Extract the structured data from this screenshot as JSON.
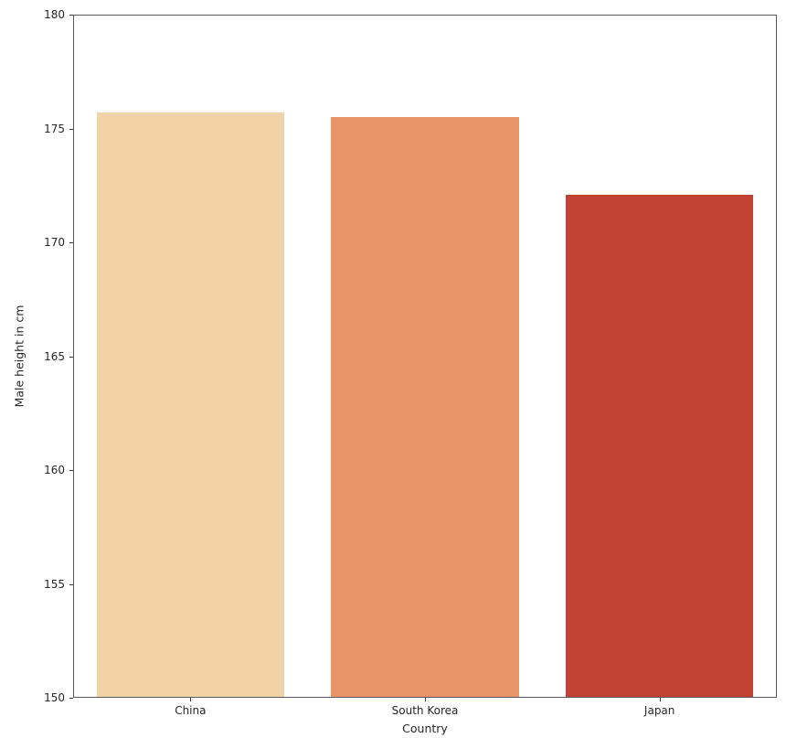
{
  "chart_data": {
    "type": "bar",
    "categories": [
      "China",
      "South Korea",
      "Japan"
    ],
    "values": [
      175.7,
      175.5,
      172.1
    ],
    "title": "",
    "xlabel": "Country",
    "ylabel": "Male height in cm",
    "ylim": [
      150,
      180
    ],
    "yticks": [
      150,
      155,
      160,
      165,
      170,
      175,
      180
    ],
    "bar_colors": [
      "#F2D2A7",
      "#E89469",
      "#C14233"
    ],
    "bar_width_fraction": 0.8,
    "grid": false,
    "legend": null
  },
  "figure": {
    "background": "#FFFFFF",
    "spine_color": "#59595B",
    "tick_color": "#3A3A3C",
    "text_color": "#262626"
  }
}
